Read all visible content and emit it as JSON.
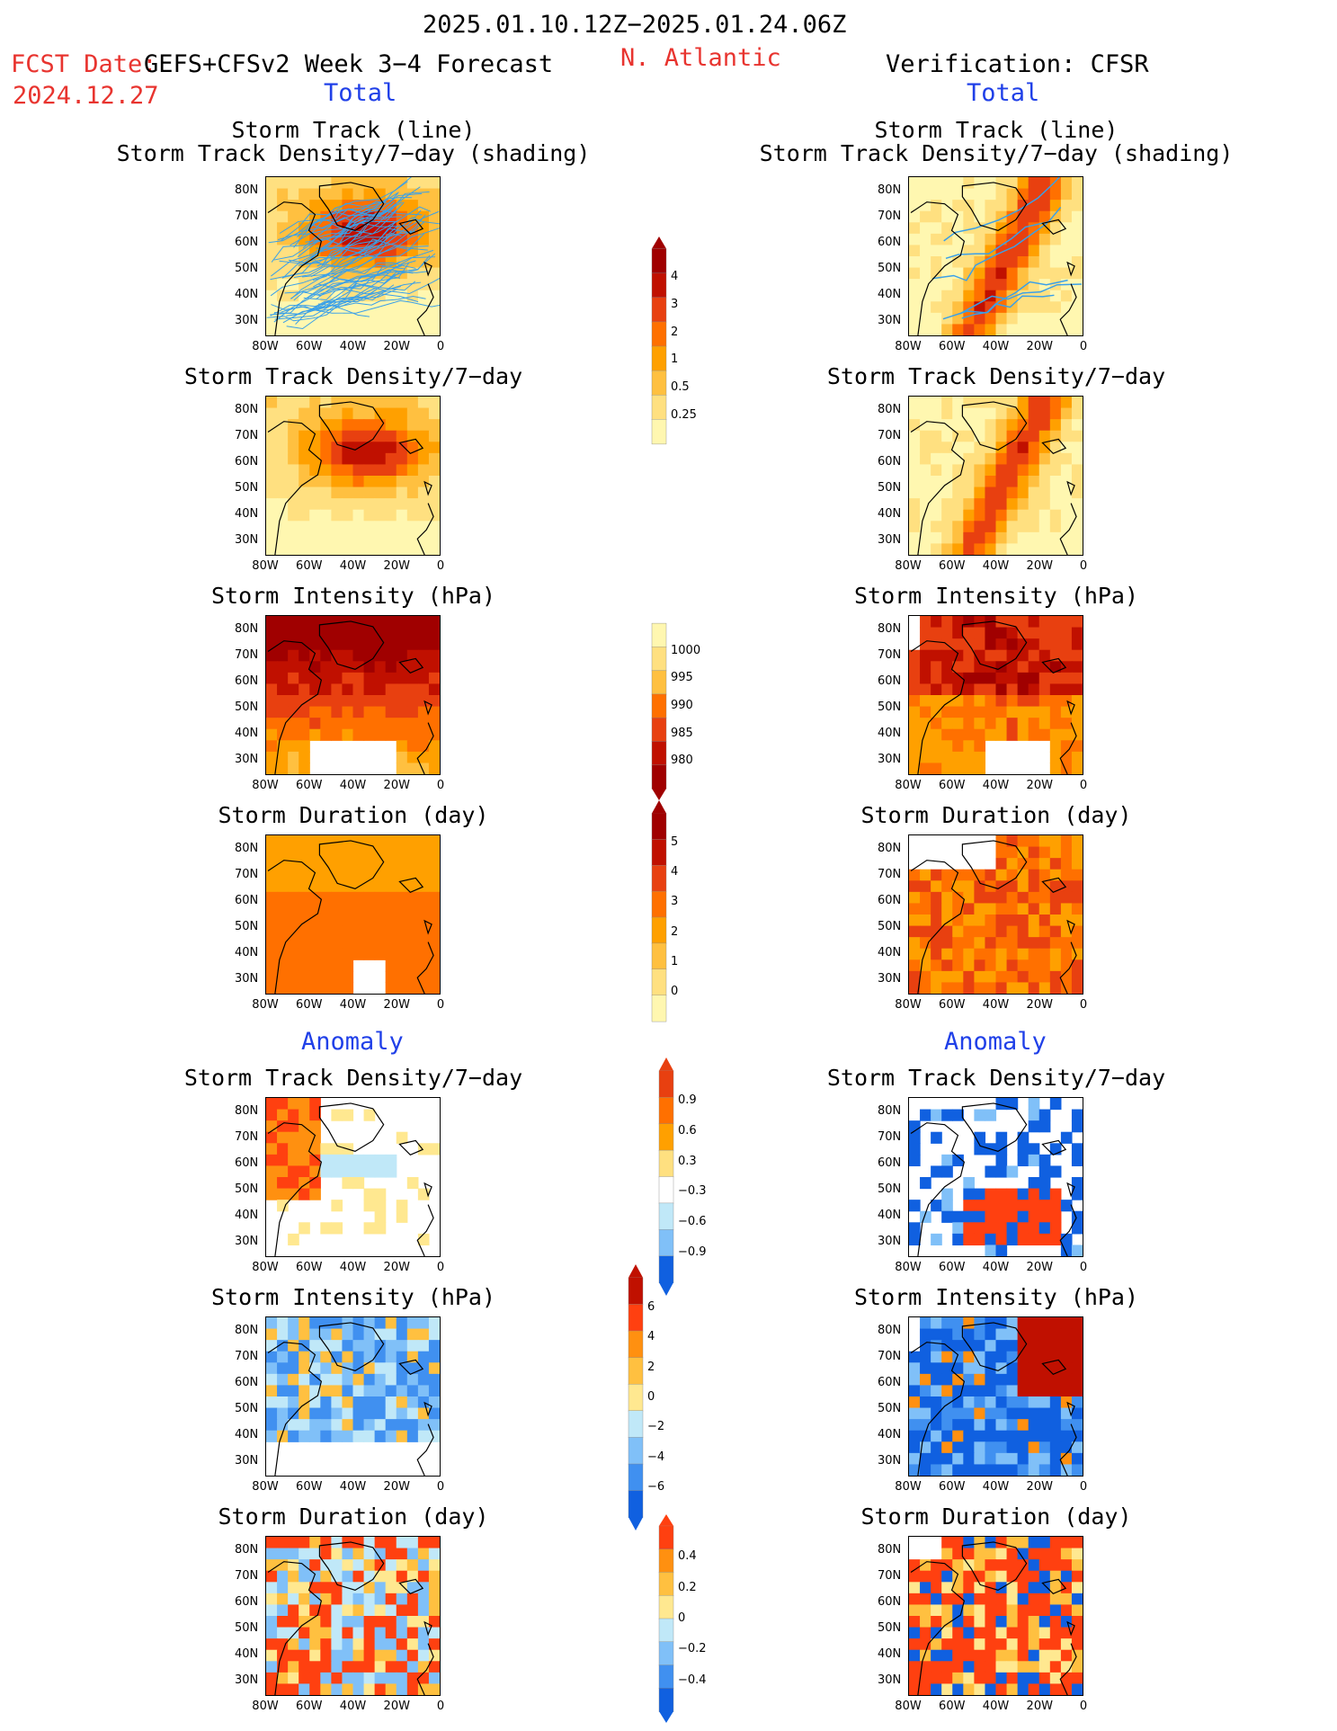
{
  "header": {
    "period": "2025.01.10.12Z−2025.01.24.06Z",
    "fcst_date_label": "FCST Date:",
    "fcst_date": "2024.12.27",
    "forecast_title": "GEFS+CFSv2 Week 3−4 Forecast",
    "region": "N. Atlantic",
    "verification": "Verification: CFSR",
    "total_left": "Total",
    "total_right": "Total",
    "anomaly_left": "Anomaly",
    "anomaly_right": "Anomaly"
  },
  "axes": {
    "lon_ticks": [
      "80W",
      "60W",
      "40W",
      "20W",
      "0"
    ],
    "lat_ticks": [
      "80N",
      "70N",
      "60N",
      "50N",
      "40N",
      "30N"
    ]
  },
  "colors": {
    "land_outline": "#000000",
    "track_line": "#3aa0e8",
    "total_scale": [
      "#fff7b0",
      "#ffe080",
      "#ffc040",
      "#ffa000",
      "#ff7000",
      "#e84010",
      "#c01000",
      "#a00000"
    ],
    "anom_scale": [
      "#1060e0",
      "#4090f0",
      "#80c0f8",
      "#c0e8f8",
      "#ffffff",
      "#ffe890",
      "#ffc040",
      "#ff9010",
      "#ff4010",
      "#c01000"
    ]
  },
  "colorbars": [
    {
      "name": "track-density",
      "labels": [
        "4",
        "3",
        "2",
        "1",
        "0.5",
        "0.25"
      ]
    },
    {
      "name": "intensity",
      "labels": [
        "1000",
        "995",
        "990",
        "985",
        "980"
      ]
    },
    {
      "name": "duration",
      "labels": [
        "5",
        "4",
        "3",
        "2",
        "1",
        "0"
      ]
    },
    {
      "name": "density-anom",
      "labels": [
        "0.9",
        "0.6",
        "0.3",
        "−0.3",
        "−0.6",
        "−0.9"
      ]
    },
    {
      "name": "intensity-anom",
      "labels": [
        "6",
        "4",
        "2",
        "0",
        "−2",
        "−4",
        "−6"
      ]
    },
    {
      "name": "duration-anom",
      "labels": [
        "0.4",
        "0.2",
        "0",
        "−0.2",
        "−0.4"
      ]
    }
  ],
  "panels": {
    "left": [
      {
        "title1": "Storm Track (line)",
        "title2": "Storm Track Density/7−day (shading)"
      },
      {
        "title1": "Storm Track Density/7−day"
      },
      {
        "title1": "Storm Intensity (hPa)"
      },
      {
        "title1": "Storm Duration (day)"
      },
      {
        "title1": "Storm Track Density/7−day"
      },
      {
        "title1": "Storm Intensity (hPa)"
      },
      {
        "title1": "Storm Duration (day)"
      }
    ],
    "right": [
      {
        "title1": "Storm Track (line)",
        "title2": "Storm Track Density/7−day (shading)"
      },
      {
        "title1": "Storm Track Density/7−day"
      },
      {
        "title1": "Storm Intensity (hPa)"
      },
      {
        "title1": "Storm Duration (day)"
      },
      {
        "title1": "Storm Track Density/7−day"
      },
      {
        "title1": "Storm Intensity (hPa)"
      },
      {
        "title1": "Storm Duration (day)"
      }
    ]
  },
  "chart_data": {
    "type": "heatmap",
    "xlim": [
      "80W",
      "0"
    ],
    "ylim": [
      "25N",
      "85N"
    ]
  }
}
